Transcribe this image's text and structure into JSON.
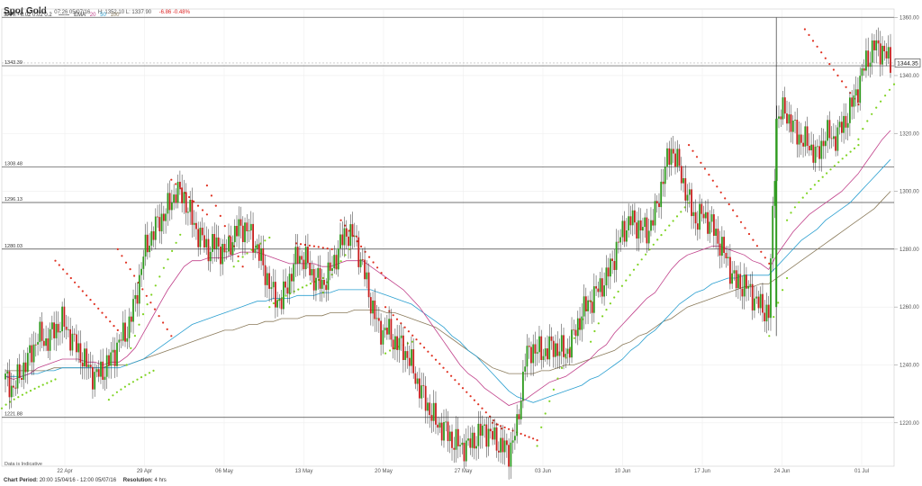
{
  "header": {
    "title": "Spot Gold",
    "period": "07:26 05/07/16",
    "hl": "H: 1352.10  L: 1337.90",
    "change": "-6.86  -0.48%"
  },
  "indicators": {
    "sar_label": "SAR:",
    "sar_params": "0.02  0.02  0.2",
    "ema_label": "EMA",
    "ema_20": "20",
    "ema_50": "50",
    "ema_100": "100"
  },
  "footer": {
    "chart_period_label": "Chart Period:",
    "chart_period_value": "20:00 15/04/16 - 12:00 05/07/16",
    "resolution_label": "Resolution:",
    "resolution_value": "4 hrs"
  },
  "note": "Data is Indicative",
  "colors": {
    "up": "#2e9a1e",
    "down": "#c81e1e",
    "sar_up": "#7ed321",
    "sar_down": "#e03020",
    "ema20": "#c0408a",
    "ema50": "#2a9fd0",
    "ema100": "#8a7a5a",
    "grid": "#eeeeee",
    "hline": "#444444"
  },
  "chart_data": {
    "type": "candlestick",
    "title": "Spot Gold",
    "ylim": [
      1205,
      1363
    ],
    "y_ticks": [
      "1220.00",
      "1240.00",
      "1260.00",
      "1280.00",
      "1300.00",
      "1320.00",
      "1340.00",
      "1360.00"
    ],
    "x_ticks": [
      "22 Apr",
      "29 Apr",
      "06 May",
      "13 May",
      "20 May",
      "27 May",
      "03 Jun",
      "10 Jun",
      "17 Jun",
      "24 Jun",
      "01 Jul"
    ],
    "last_price": "1344.35",
    "last_value": 1344.35,
    "horizontal_levels": [
      {
        "label": "1360.14",
        "value": 1360.14
      },
      {
        "label": "1343.39",
        "value": 1343.39
      },
      {
        "label": "1308.48",
        "value": 1308.48
      },
      {
        "label": "1296.13",
        "value": 1296.13
      },
      {
        "label": "1280.03",
        "value": 1280.03
      },
      {
        "label": "1221.88",
        "value": 1221.88
      }
    ],
    "top_level": 1380,
    "close_series": [
      1235,
      1232,
      1238,
      1243,
      1250,
      1248,
      1252,
      1255,
      1250,
      1245,
      1240,
      1236,
      1238,
      1242,
      1248,
      1252,
      1262,
      1278,
      1285,
      1290,
      1294,
      1300,
      1298,
      1290,
      1284,
      1280,
      1282,
      1278,
      1284,
      1288,
      1286,
      1280,
      1272,
      1264,
      1262,
      1270,
      1278,
      1276,
      1270,
      1268,
      1272,
      1280,
      1286,
      1284,
      1274,
      1262,
      1252,
      1252,
      1248,
      1246,
      1240,
      1232,
      1226,
      1220,
      1218,
      1214,
      1212,
      1212,
      1215,
      1218,
      1215,
      1212,
      1210,
      1218,
      1242,
      1246,
      1244,
      1246,
      1246,
      1244,
      1250,
      1258,
      1262,
      1266,
      1270,
      1278,
      1286,
      1290,
      1288,
      1286,
      1292,
      1305,
      1315,
      1308,
      1298,
      1290,
      1292,
      1288,
      1282,
      1275,
      1268,
      1268,
      1264,
      1260,
      1258,
      1325,
      1328,
      1322,
      1318,
      1316,
      1312,
      1320,
      1318,
      1322,
      1328,
      1336,
      1345,
      1350,
      1349,
      1344
    ],
    "ema20": [
      1236,
      1235,
      1236,
      1237,
      1239,
      1240,
      1241,
      1242,
      1242,
      1242,
      1241,
      1241,
      1240,
      1241,
      1241,
      1243,
      1246,
      1251,
      1256,
      1261,
      1266,
      1270,
      1274,
      1276,
      1276,
      1277,
      1277,
      1277,
      1278,
      1279,
      1279,
      1279,
      1278,
      1277,
      1276,
      1275,
      1275,
      1275,
      1275,
      1274,
      1274,
      1275,
      1276,
      1276,
      1276,
      1274,
      1272,
      1270,
      1268,
      1266,
      1263,
      1260,
      1256,
      1252,
      1248,
      1244,
      1240,
      1237,
      1235,
      1232,
      1230,
      1228,
      1226,
      1227,
      1228,
      1230,
      1232,
      1234,
      1235,
      1236,
      1238,
      1240,
      1242,
      1245,
      1247,
      1251,
      1254,
      1257,
      1260,
      1263,
      1265,
      1269,
      1273,
      1276,
      1278,
      1279,
      1280,
      1281,
      1281,
      1280,
      1279,
      1278,
      1276,
      1275,
      1273,
      1278,
      1282,
      1286,
      1289,
      1292,
      1294,
      1296,
      1298,
      1300,
      1303,
      1306,
      1310,
      1314,
      1318,
      1321
    ],
    "ema50": [
      1236,
      1236,
      1236,
      1237,
      1237,
      1238,
      1238,
      1239,
      1239,
      1239,
      1239,
      1239,
      1239,
      1239,
      1239,
      1240,
      1241,
      1242,
      1244,
      1246,
      1248,
      1250,
      1252,
      1254,
      1255,
      1256,
      1257,
      1258,
      1259,
      1260,
      1261,
      1262,
      1262,
      1263,
      1263,
      1263,
      1264,
      1264,
      1264,
      1265,
      1265,
      1266,
      1266,
      1266,
      1266,
      1266,
      1265,
      1264,
      1263,
      1262,
      1261,
      1259,
      1257,
      1255,
      1253,
      1250,
      1248,
      1245,
      1243,
      1240,
      1237,
      1234,
      1231,
      1229,
      1228,
      1227,
      1228,
      1229,
      1230,
      1231,
      1232,
      1233,
      1235,
      1236,
      1238,
      1240,
      1242,
      1245,
      1247,
      1250,
      1252,
      1255,
      1258,
      1261,
      1263,
      1265,
      1266,
      1268,
      1269,
      1270,
      1270,
      1271,
      1271,
      1271,
      1271,
      1274,
      1277,
      1280,
      1283,
      1285,
      1287,
      1290,
      1292,
      1294,
      1296,
      1299,
      1302,
      1305,
      1308,
      1311
    ],
    "ema100": [
      1238,
      1238,
      1238,
      1238,
      1238,
      1238,
      1239,
      1239,
      1239,
      1239,
      1239,
      1239,
      1239,
      1240,
      1240,
      1240,
      1241,
      1242,
      1243,
      1244,
      1245,
      1246,
      1247,
      1248,
      1249,
      1250,
      1251,
      1252,
      1252,
      1253,
      1254,
      1254,
      1255,
      1255,
      1256,
      1256,
      1256,
      1257,
      1257,
      1257,
      1258,
      1258,
      1258,
      1259,
      1259,
      1259,
      1259,
      1258,
      1258,
      1257,
      1256,
      1255,
      1254,
      1253,
      1251,
      1249,
      1247,
      1245,
      1243,
      1241,
      1239,
      1238,
      1237,
      1237,
      1237,
      1237,
      1238,
      1238,
      1239,
      1240,
      1240,
      1241,
      1242,
      1243,
      1244,
      1245,
      1247,
      1248,
      1250,
      1251,
      1253,
      1255,
      1256,
      1258,
      1260,
      1261,
      1262,
      1263,
      1264,
      1265,
      1266,
      1267,
      1267,
      1268,
      1268,
      1270,
      1272,
      1274,
      1276,
      1278,
      1280,
      1282,
      1284,
      1286,
      1288,
      1290,
      1292,
      1294,
      1297,
      1300
    ],
    "sar": [
      {
        "x0": 0.0,
        "x1": 0.06,
        "y0": 1225,
        "y1": 1235,
        "dir": "up"
      },
      {
        "x0": 0.06,
        "x1": 0.13,
        "y0": 1276,
        "y1": 1252,
        "dir": "down"
      },
      {
        "x0": 0.12,
        "x1": 0.17,
        "y0": 1228,
        "y1": 1238,
        "dir": "up"
      },
      {
        "x0": 0.13,
        "x1": 0.19,
        "y0": 1280,
        "y1": 1250,
        "dir": "down"
      },
      {
        "x0": 0.14,
        "x1": 0.2,
        "y0": 1240,
        "y1": 1285,
        "dir": "up"
      },
      {
        "x0": 0.19,
        "x1": 0.23,
        "y0": 1304,
        "y1": 1292,
        "dir": "down"
      },
      {
        "x0": 0.23,
        "x1": 0.27,
        "y0": 1302,
        "y1": 1274,
        "dir": "down"
      },
      {
        "x0": 0.26,
        "x1": 0.3,
        "y0": 1274,
        "y1": 1284,
        "dir": "up"
      },
      {
        "x0": 0.3,
        "x1": 0.36,
        "y0": 1260,
        "y1": 1270,
        "dir": "up"
      },
      {
        "x0": 0.33,
        "x1": 0.37,
        "y0": 1282,
        "y1": 1280,
        "dir": "down"
      },
      {
        "x0": 0.36,
        "x1": 0.39,
        "y0": 1265,
        "y1": 1280,
        "dir": "up"
      },
      {
        "x0": 0.38,
        "x1": 0.43,
        "y0": 1290,
        "y1": 1270,
        "dir": "down"
      },
      {
        "x0": 0.43,
        "x1": 0.56,
        "y0": 1260,
        "y1": 1218,
        "dir": "down"
      },
      {
        "x0": 0.43,
        "x1": 0.46,
        "y0": 1244,
        "y1": 1248,
        "dir": "up"
      },
      {
        "x0": 0.55,
        "x1": 0.6,
        "y0": 1220,
        "y1": 1214,
        "dir": "down"
      },
      {
        "x0": 0.6,
        "x1": 0.66,
        "y0": 1212,
        "y1": 1262,
        "dir": "up"
      },
      {
        "x0": 0.66,
        "x1": 0.77,
        "y0": 1248,
        "y1": 1296,
        "dir": "up"
      },
      {
        "x0": 0.77,
        "x1": 0.86,
        "y0": 1316,
        "y1": 1275,
        "dir": "down"
      },
      {
        "x0": 0.86,
        "x1": 0.88,
        "y0": 1250,
        "y1": 1270,
        "dir": "up"
      },
      {
        "x0": 0.88,
        "x1": 0.96,
        "y0": 1290,
        "y1": 1316,
        "dir": "up"
      },
      {
        "x0": 0.9,
        "x1": 0.96,
        "y0": 1356,
        "y1": 1330,
        "dir": "down"
      },
      {
        "x0": 0.96,
        "x1": 1.0,
        "y0": 1318,
        "y1": 1337,
        "dir": "up"
      }
    ],
    "spike": {
      "x": 0.868,
      "low": 1250,
      "high": 1360
    }
  }
}
